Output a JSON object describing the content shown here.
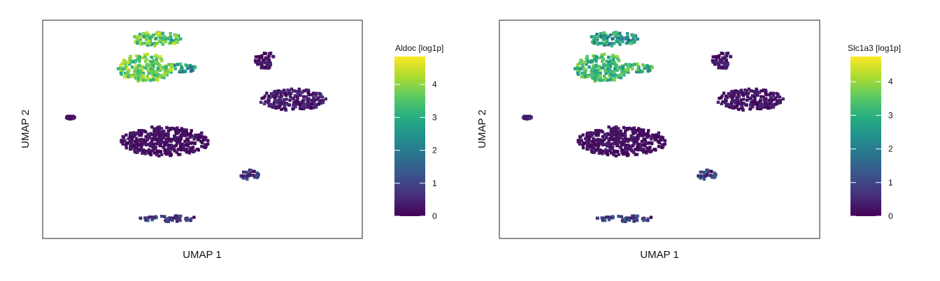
{
  "chart_data": [
    {
      "type": "scatter",
      "title": "",
      "xlabel": "UMAP 1",
      "ylabel": "UMAP 2",
      "colorbar": {
        "title": "Aldoc [log1p]",
        "ticks": [
          "0",
          "1",
          "2",
          "3",
          "4"
        ],
        "range": [
          0,
          4.85
        ],
        "colormap": "viridis"
      },
      "clusters": [
        {
          "name": "",
          "center": [
            3.6,
            8.05
          ],
          "spread": [
            0.9,
            0.35
          ],
          "value_range": [
            2.5,
            4.5
          ]
        },
        {
          "name": "",
          "center": [
            3.2,
            6.6
          ],
          "spread": [
            1.0,
            0.7
          ],
          "value_range": [
            3.0,
            4.6
          ]
        },
        {
          "name": "",
          "center": [
            4.6,
            6.6
          ],
          "spread": [
            0.4,
            0.25
          ],
          "value_range": [
            1.5,
            3.5
          ]
        },
        {
          "name": "",
          "center": [
            7.5,
            7.0
          ],
          "spread": [
            0.35,
            0.45
          ],
          "value_range": [
            0,
            0.5
          ]
        },
        {
          "name": "",
          "center": [
            8.5,
            5.0
          ],
          "spread": [
            1.2,
            0.55
          ],
          "value_range": [
            0,
            0.7
          ]
        },
        {
          "name": "",
          "center": [
            0.5,
            4.1
          ],
          "spread": [
            0.15,
            0.08
          ],
          "value_range": [
            0,
            0.5
          ]
        },
        {
          "name": "",
          "center": [
            3.9,
            2.9
          ],
          "spread": [
            1.6,
            0.75
          ],
          "value_range": [
            0,
            0.4
          ]
        },
        {
          "name": "",
          "center": [
            7.0,
            1.2
          ],
          "spread": [
            0.4,
            0.25
          ],
          "value_range": [
            0,
            1.5
          ]
        },
        {
          "name": "",
          "center": [
            4.0,
            -1.0
          ],
          "spread": [
            1.1,
            0.15
          ],
          "value_range": [
            0,
            1.6
          ]
        }
      ]
    },
    {
      "type": "scatter",
      "title": "",
      "xlabel": "UMAP 1",
      "ylabel": "UMAP 2",
      "colorbar": {
        "title": "Slc1a3 [log1p]",
        "ticks": [
          "0",
          "1",
          "2",
          "3",
          "4"
        ],
        "range": [
          0,
          4.75
        ],
        "colormap": "viridis"
      },
      "clusters": [
        {
          "name": "",
          "center": [
            3.6,
            8.05
          ],
          "spread": [
            0.9,
            0.35
          ],
          "value_range": [
            1.5,
            3.5
          ]
        },
        {
          "name": "",
          "center": [
            3.2,
            6.6
          ],
          "spread": [
            1.0,
            0.7
          ],
          "value_range": [
            2.5,
            4.0
          ]
        },
        {
          "name": "",
          "center": [
            4.6,
            6.6
          ],
          "spread": [
            0.4,
            0.25
          ],
          "value_range": [
            2.0,
            4.0
          ]
        },
        {
          "name": "",
          "center": [
            7.5,
            7.0
          ],
          "spread": [
            0.35,
            0.45
          ],
          "value_range": [
            0,
            0.6
          ]
        },
        {
          "name": "",
          "center": [
            8.5,
            5.0
          ],
          "spread": [
            1.2,
            0.55
          ],
          "value_range": [
            0,
            0.5
          ]
        },
        {
          "name": "",
          "center": [
            0.5,
            4.1
          ],
          "spread": [
            0.15,
            0.08
          ],
          "value_range": [
            0,
            1.0
          ]
        },
        {
          "name": "",
          "center": [
            3.9,
            2.9
          ],
          "spread": [
            1.6,
            0.75
          ],
          "value_range": [
            0,
            0.4
          ]
        },
        {
          "name": "",
          "center": [
            7.0,
            1.2
          ],
          "spread": [
            0.4,
            0.25
          ],
          "value_range": [
            0,
            2.0
          ]
        },
        {
          "name": "",
          "center": [
            4.0,
            -1.0
          ],
          "spread": [
            1.1,
            0.15
          ],
          "value_range": [
            0,
            1.8
          ]
        }
      ]
    }
  ]
}
